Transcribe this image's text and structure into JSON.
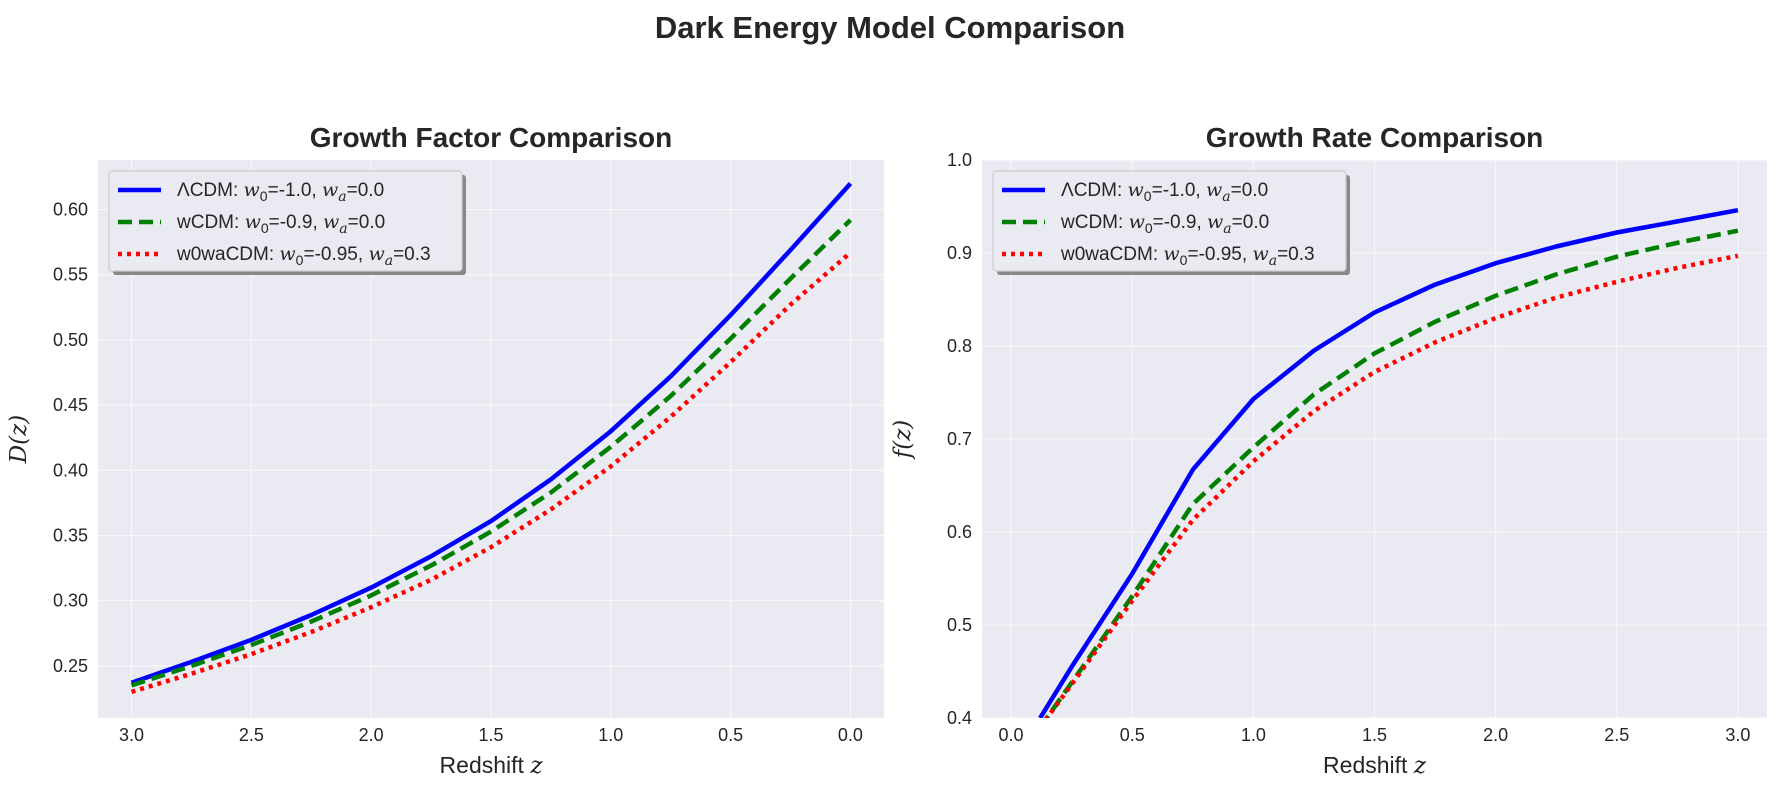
{
  "figure": {
    "suptitle": "Dark Energy Model Comparison"
  },
  "colors": {
    "panel_bg": "#eaeaf2",
    "grid": "#ffffff",
    "text": "#262626"
  },
  "chart_data": [
    {
      "type": "line",
      "title": "Growth Factor Comparison",
      "xlabel": "Redshift",
      "xlabel_var": "z",
      "ylabel": "D(z)",
      "xlim": [
        3.14,
        -0.14
      ],
      "ylim": [
        0.21,
        0.638
      ],
      "x_inverted": true,
      "grid": true,
      "legend_position": "upper-left",
      "xticks": [
        3.0,
        2.5,
        2.0,
        1.5,
        1.0,
        0.5,
        0.0
      ],
      "xtick_labels": [
        "3.0",
        "2.5",
        "2.0",
        "1.5",
        "1.0",
        "0.5",
        "0.0"
      ],
      "yticks": [
        0.25,
        0.3,
        0.35,
        0.4,
        0.45,
        0.5,
        0.55,
        0.6
      ],
      "ytick_labels": [
        "0.25",
        "0.30",
        "0.35",
        "0.40",
        "0.45",
        "0.50",
        "0.55",
        "0.60"
      ],
      "x": [
        3.0,
        2.75,
        2.5,
        2.25,
        2.0,
        1.75,
        1.5,
        1.25,
        1.0,
        0.75,
        0.5,
        0.25,
        0.0
      ],
      "series": [
        {
          "legend_parts": [
            "ΛCDM: w0=-1.0, wa=0.0"
          ],
          "color": "#0000ff",
          "dash": "solid",
          "values": [
            0.237,
            0.253,
            0.27,
            0.289,
            0.31,
            0.334,
            0.361,
            0.393,
            0.43,
            0.472,
            0.519,
            0.569,
            0.62
          ]
        },
        {
          "legend_parts": [
            "wCDM: w0=-0.9, wa=0.0"
          ],
          "color": "#008000",
          "dash": "dashed",
          "values": [
            0.235,
            0.25,
            0.266,
            0.284,
            0.304,
            0.327,
            0.353,
            0.383,
            0.418,
            0.457,
            0.501,
            0.547,
            0.592
          ]
        },
        {
          "legend_parts": [
            "w0waCDM: w0=-0.95, wa=0.3"
          ],
          "color": "#ff0000",
          "dash": "dotted",
          "values": [
            0.23,
            0.244,
            0.259,
            0.276,
            0.295,
            0.316,
            0.341,
            0.37,
            0.403,
            0.441,
            0.483,
            0.527,
            0.567
          ]
        }
      ]
    },
    {
      "type": "line",
      "title": "Growth Rate Comparison",
      "xlabel": "Redshift",
      "xlabel_var": "z",
      "ylabel": "f(z)",
      "xlim": [
        -0.12,
        3.12
      ],
      "ylim": [
        0.4,
        1.0
      ],
      "x_inverted": false,
      "grid": true,
      "legend_position": "upper-left",
      "xticks": [
        0.0,
        0.5,
        1.0,
        1.5,
        2.0,
        2.5,
        3.0
      ],
      "xtick_labels": [
        "0.0",
        "0.5",
        "1.0",
        "1.5",
        "2.0",
        "2.5",
        "3.0"
      ],
      "yticks": [
        0.4,
        0.5,
        0.6,
        0.7,
        0.8,
        0.9,
        1.0
      ],
      "ytick_labels": [
        "0.4",
        "0.5",
        "0.6",
        "0.7",
        "0.8",
        "0.9",
        "1.0"
      ],
      "x": [
        0.12,
        0.25,
        0.5,
        0.75,
        1.0,
        1.25,
        1.5,
        1.75,
        2.0,
        2.25,
        2.5,
        2.75,
        3.0
      ],
      "series": [
        {
          "color": "#0000ff",
          "dash": "solid",
          "values": [
            0.4,
            0.455,
            0.555,
            0.667,
            0.743,
            0.795,
            0.836,
            0.866,
            0.889,
            0.907,
            0.922,
            0.934,
            0.946
          ]
        },
        {
          "color": "#008000",
          "dash": "dashed",
          "values": [
            0.39,
            0.438,
            0.531,
            0.63,
            0.691,
            0.748,
            0.792,
            0.826,
            0.854,
            0.877,
            0.896,
            0.911,
            0.924
          ]
        },
        {
          "color": "#ff0000",
          "dash": "dotted",
          "values": [
            0.39,
            0.436,
            0.526,
            0.613,
            0.676,
            0.73,
            0.772,
            0.804,
            0.83,
            0.852,
            0.869,
            0.884,
            0.897
          ]
        }
      ]
    }
  ],
  "legend_entries": [
    {
      "prefix": "ΛCDM: ",
      "w0": "=-1.0, ",
      "wa": "=0.0",
      "color": "#0000ff",
      "dash": "solid"
    },
    {
      "prefix": "wCDM: ",
      "w0": "=-0.9, ",
      "wa": "=0.0",
      "color": "#008000",
      "dash": "dashed"
    },
    {
      "prefix": "w0waCDM: ",
      "w0": "=-0.95, ",
      "wa": "=0.3",
      "color": "#ff0000",
      "dash": "dotted"
    }
  ]
}
